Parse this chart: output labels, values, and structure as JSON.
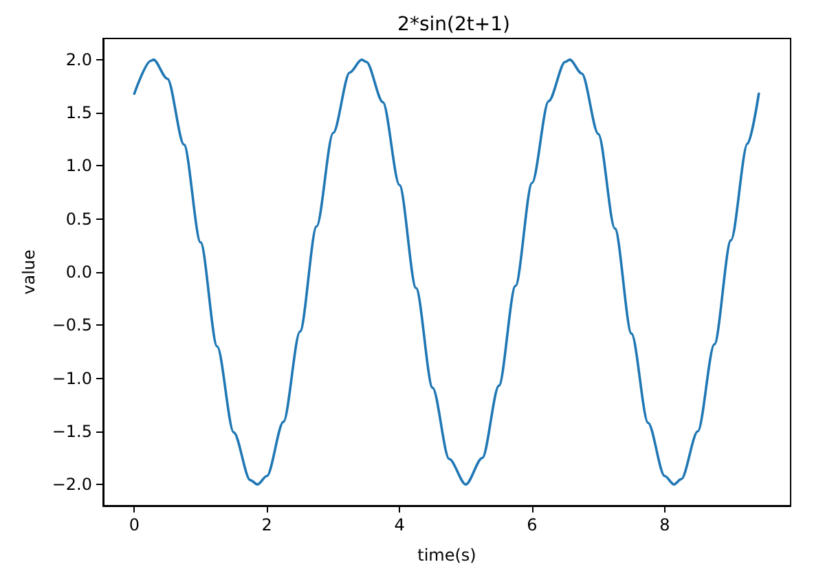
{
  "chart_data": {
    "type": "line",
    "title": "2*sin(2t+1)",
    "xlabel": "time(s)",
    "ylabel": "value",
    "xlim": [
      -0.47,
      9.9
    ],
    "xticks": [
      0,
      2,
      4,
      6,
      8
    ],
    "ylim": [
      -2.2,
      2.2
    ],
    "yticks": [
      {
        "value": -2,
        "label": "−2.0"
      },
      {
        "value": -1.5,
        "label": "−1.5"
      },
      {
        "value": -1,
        "label": "−1.0"
      },
      {
        "value": -0.5,
        "label": "−0.5"
      },
      {
        "value": 0,
        "label": "0.0"
      },
      {
        "value": 0.5,
        "label": "0.5"
      },
      {
        "value": 1,
        "label": "1.0"
      },
      {
        "value": 1.5,
        "label": "1.5"
      },
      {
        "value": 2,
        "label": "2.0"
      }
    ],
    "grid": false,
    "marker": "none",
    "line_style": "solid",
    "series": [
      {
        "color": "#1f77b4",
        "x": [
          0,
          0.25,
          0.29,
          0.5,
          0.75,
          1,
          1.25,
          1.5,
          1.75,
          1.86,
          2,
          2.25,
          2.5,
          2.75,
          3,
          3.25,
          3.43,
          3.5,
          3.75,
          4,
          4.25,
          4.5,
          4.75,
          5,
          5.25,
          5.5,
          5.75,
          6,
          6.25,
          6.5,
          6.57,
          6.75,
          7,
          7.25,
          7.5,
          7.75,
          8,
          8.14,
          8.25,
          8.5,
          8.75,
          9,
          9.25,
          9.42
        ],
        "values": [
          1.68,
          1.99,
          2,
          1.82,
          1.2,
          0.28,
          -0.7,
          -1.51,
          -1.96,
          -2,
          -1.92,
          -1.41,
          -0.56,
          0.43,
          1.31,
          1.88,
          2,
          1.98,
          1.6,
          0.82,
          -0.15,
          -1.09,
          -1.76,
          -2,
          -1.75,
          -1.07,
          -0.13,
          0.84,
          1.61,
          1.98,
          2,
          1.87,
          1.3,
          0.41,
          -0.58,
          -1.42,
          -1.92,
          -2,
          -1.95,
          -1.5,
          -0.68,
          0.3,
          1.21,
          1.68
        ]
      }
    ]
  }
}
